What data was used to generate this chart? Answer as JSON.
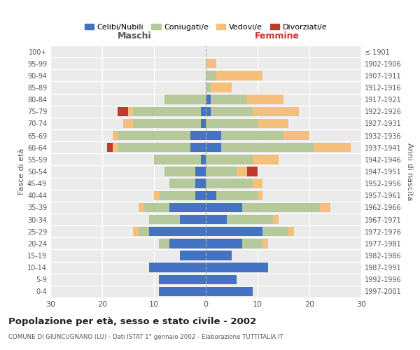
{
  "age_groups": [
    "0-4",
    "5-9",
    "10-14",
    "15-19",
    "20-24",
    "25-29",
    "30-34",
    "35-39",
    "40-44",
    "45-49",
    "50-54",
    "55-59",
    "60-64",
    "65-69",
    "70-74",
    "75-79",
    "80-84",
    "85-89",
    "90-94",
    "95-99",
    "100+"
  ],
  "birth_years": [
    "1997-2001",
    "1992-1996",
    "1987-1991",
    "1982-1986",
    "1977-1981",
    "1972-1976",
    "1967-1971",
    "1962-1966",
    "1957-1961",
    "1952-1956",
    "1947-1951",
    "1942-1946",
    "1937-1941",
    "1932-1936",
    "1927-1931",
    "1922-1926",
    "1917-1921",
    "1912-1916",
    "1907-1911",
    "1902-1906",
    "≤ 1901"
  ],
  "males": {
    "celibi": [
      9,
      9,
      11,
      5,
      7,
      11,
      5,
      7,
      2,
      2,
      2,
      1,
      3,
      3,
      1,
      1,
      0,
      0,
      0,
      0,
      0
    ],
    "coniugati": [
      0,
      0,
      0,
      0,
      2,
      2,
      6,
      5,
      7,
      5,
      6,
      9,
      14,
      14,
      13,
      13,
      8,
      0,
      0,
      0,
      0
    ],
    "vedovi": [
      0,
      0,
      0,
      0,
      0,
      1,
      0,
      1,
      1,
      0,
      0,
      0,
      1,
      1,
      2,
      1,
      0,
      0,
      0,
      0,
      0
    ],
    "divorziati": [
      0,
      0,
      0,
      0,
      0,
      0,
      0,
      0,
      0,
      0,
      0,
      0,
      1,
      0,
      0,
      2,
      0,
      0,
      0,
      0,
      0
    ]
  },
  "females": {
    "nubili": [
      9,
      6,
      12,
      5,
      7,
      11,
      4,
      7,
      2,
      0,
      0,
      0,
      3,
      3,
      0,
      1,
      1,
      0,
      0,
      0,
      0
    ],
    "coniugate": [
      0,
      0,
      0,
      0,
      4,
      5,
      9,
      15,
      8,
      9,
      6,
      9,
      18,
      12,
      10,
      8,
      7,
      1,
      2,
      0,
      0
    ],
    "vedove": [
      0,
      0,
      0,
      0,
      1,
      1,
      1,
      2,
      1,
      2,
      2,
      5,
      7,
      5,
      6,
      9,
      7,
      4,
      9,
      2,
      0
    ],
    "divorziate": [
      0,
      0,
      0,
      0,
      0,
      0,
      0,
      0,
      0,
      0,
      2,
      0,
      0,
      0,
      0,
      0,
      0,
      0,
      0,
      0,
      0
    ]
  },
  "colors": {
    "celibi_nubili": "#4472c4",
    "coniugati_e": "#b5c99a",
    "vedovi_e": "#f5c07a",
    "divorziati_e": "#c0392b"
  },
  "title": "Popolazione per età, sesso e stato civile - 2002",
  "subtitle": "COMUNE DI GIUNCUGNANO (LU) - Dati ISTAT 1° gennaio 2002 - Elaborazione TUTTITALIA.IT",
  "xlabel_left": "Maschi",
  "xlabel_right": "Femmine",
  "ylabel_left": "Fasce di età",
  "ylabel_right": "Anni di nascita",
  "xlim": 30,
  "legend_labels": [
    "Celibi/Nubili",
    "Coniugati/e",
    "Vedovi/e",
    "Divorziati/e"
  ],
  "background_color": "#ffffff",
  "grid_color": "#cccccc"
}
